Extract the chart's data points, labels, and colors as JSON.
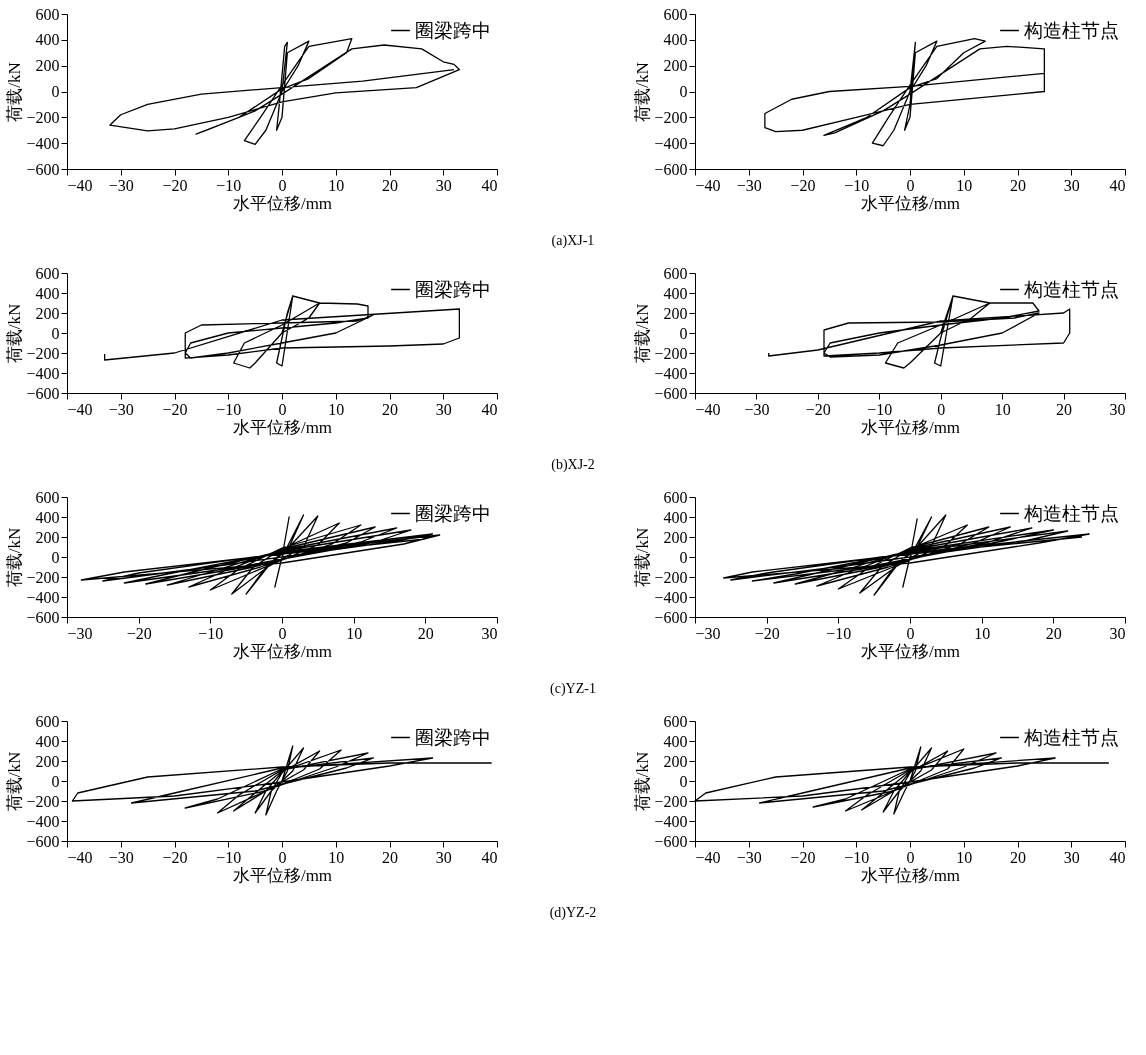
{
  "chart_data": [
    {
      "type": "line",
      "xlabel": "水平位移/mm",
      "ylabel": "荷载/kN",
      "xlim": [
        -40,
        40
      ],
      "xticks": [
        -40,
        -30,
        -20,
        -10,
        0,
        10,
        20,
        30,
        40
      ],
      "ylim": [
        -600,
        600
      ],
      "yticks": [
        -600,
        -400,
        -200,
        0,
        200,
        400,
        600
      ],
      "legend": "top right",
      "annotations": [
        "(a)XJ-1"
      ],
      "series": [
        {
          "name": "圈梁跨中",
          "color": "#000000",
          "x": [
            0,
            1,
            0.5,
            -0.5,
            -1,
            0,
            1,
            5,
            3,
            0,
            -3,
            -5,
            -7,
            -4,
            0,
            5,
            13,
            12,
            5,
            0,
            -8,
            -16,
            -14,
            -5,
            0,
            13,
            19,
            26,
            30,
            32,
            33,
            25,
            10,
            0,
            -10,
            -20,
            -25,
            -32,
            -30,
            -25,
            -15,
            0,
            15,
            32
          ],
          "values": [
            0,
            380,
            350,
            -100,
            -300,
            -200,
            300,
            390,
            200,
            0,
            -300,
            -410,
            -380,
            -200,
            50,
            350,
            410,
            300,
            100,
            20,
            -200,
            -330,
            -300,
            -150,
            -20,
            330,
            360,
            330,
            230,
            210,
            170,
            30,
            -10,
            -80,
            -200,
            -290,
            -305,
            -260,
            -180,
            -100,
            -20,
            30,
            80,
            170
          ]
        }
      ]
    },
    {
      "type": "line",
      "xlabel": "水平位移/mm",
      "ylabel": "荷载/kN",
      "xlim": [
        -40,
        40
      ],
      "xticks": [
        -40,
        -30,
        -20,
        -10,
        0,
        10,
        20,
        30,
        40
      ],
      "ylim": [
        -600,
        600
      ],
      "yticks": [
        -600,
        -400,
        -200,
        0,
        200,
        400,
        600
      ],
      "legend": "top right",
      "series": [
        {
          "name": "构造柱节点",
          "color": "#000000",
          "x": [
            0,
            1,
            0,
            -1,
            0,
            1,
            5,
            3,
            0,
            -3,
            -5,
            -7,
            -4,
            0,
            5,
            12,
            14,
            10,
            5,
            0,
            -8,
            -16,
            -14,
            -5,
            0,
            13,
            18,
            25,
            25,
            20,
            0,
            -10,
            -20,
            -25,
            -27,
            -27,
            -22,
            -15,
            0,
            25,
            25
          ],
          "values": [
            0,
            380,
            -100,
            -300,
            -200,
            300,
            390,
            200,
            0,
            -300,
            -420,
            -400,
            -200,
            50,
            350,
            410,
            390,
            300,
            100,
            30,
            -200,
            -340,
            -320,
            -150,
            -20,
            330,
            350,
            330,
            0,
            -20,
            -100,
            -200,
            -300,
            -310,
            -280,
            -170,
            -60,
            0,
            40,
            140,
            170
          ]
        }
      ]
    },
    {
      "type": "line",
      "xlabel": "水平位移/mm",
      "ylabel": "荷载/kN",
      "xlim": [
        -40,
        40
      ],
      "xticks": [
        -40,
        -30,
        -20,
        -10,
        0,
        10,
        20,
        30,
        40
      ],
      "ylim": [
        -600,
        600
      ],
      "yticks": [
        -600,
        -400,
        -200,
        0,
        200,
        400,
        600
      ],
      "legend": "top right",
      "annotations": [
        "(b)XJ-2"
      ],
      "series": [
        {
          "name": "圈梁跨中",
          "color": "#000000",
          "x": [
            0,
            2,
            1,
            0,
            -1,
            0,
            2,
            7,
            5,
            0,
            -5,
            -6,
            -9,
            -7,
            0,
            7,
            14,
            16,
            16,
            10,
            0,
            -10,
            -17,
            -18,
            -17,
            -10,
            0,
            10,
            17,
            14,
            0,
            -15,
            -18,
            -18,
            -10,
            0,
            20,
            30,
            33,
            33,
            33,
            0,
            -20,
            -33,
            -33
          ],
          "values": [
            0,
            370,
            200,
            -50,
            -300,
            -330,
            370,
            300,
            150,
            0,
            -300,
            -350,
            -300,
            -100,
            80,
            300,
            290,
            270,
            150,
            100,
            50,
            0,
            -100,
            -200,
            -250,
            -200,
            -100,
            0,
            180,
            120,
            100,
            80,
            0,
            -250,
            -220,
            -150,
            -130,
            -110,
            -50,
            150,
            240,
            130,
            -200,
            -270,
            -210
          ]
        }
      ]
    },
    {
      "type": "line",
      "xlabel": "水平位移/mm",
      "ylabel": "荷载/kN",
      "xlim": [
        -40,
        30
      ],
      "xticks": [
        -40,
        -30,
        -20,
        -10,
        0,
        10,
        20,
        30
      ],
      "ylim": [
        -600,
        600
      ],
      "yticks": [
        -600,
        -400,
        -200,
        0,
        200,
        400,
        600
      ],
      "legend": "top right",
      "series": [
        {
          "name": "构造柱节点",
          "color": "#000000",
          "x": [
            0,
            2,
            0,
            -1,
            0,
            2,
            8,
            5,
            0,
            -5,
            -6,
            -9,
            -7,
            0,
            8,
            15,
            16,
            10,
            0,
            -10,
            -18,
            -19,
            -18,
            -10,
            0,
            10,
            16,
            12,
            0,
            -15,
            -19,
            -19,
            -10,
            0,
            20,
            21,
            21,
            20,
            0,
            -20,
            -28,
            -28
          ],
          "values": [
            0,
            370,
            -50,
            -300,
            -330,
            370,
            300,
            150,
            0,
            -300,
            -350,
            -300,
            -100,
            80,
            300,
            300,
            220,
            150,
            80,
            0,
            -100,
            -200,
            -240,
            -220,
            -120,
            0,
            200,
            150,
            110,
            100,
            30,
            -230,
            -200,
            -150,
            -100,
            0,
            240,
            200,
            120,
            -170,
            -230,
            -200
          ]
        }
      ]
    },
    {
      "type": "line",
      "xlabel": "水平位移/mm",
      "ylabel": "荷载/kN",
      "xlim": [
        -30,
        30
      ],
      "xticks": [
        -30,
        -20,
        -10,
        0,
        10,
        20,
        30
      ],
      "ylim": [
        -600,
        600
      ],
      "yticks": [
        -600,
        -400,
        -200,
        0,
        200,
        400,
        600
      ],
      "legend": "top right",
      "annotations": [
        "(c)YZ-1"
      ],
      "series": [
        {
          "name": "圈梁跨中",
          "color": "#000000",
          "x": [
            0,
            1,
            0,
            -1,
            0,
            3,
            1,
            -2,
            -5,
            -2,
            1,
            5,
            3,
            -2,
            -7,
            -4,
            0,
            8,
            5,
            -2,
            -10,
            -6,
            0,
            11,
            7,
            -3,
            -13,
            -8,
            0,
            13,
            9,
            -4,
            -16,
            -10,
            0,
            16,
            11,
            -5,
            -19,
            -13,
            0,
            18,
            13,
            -6,
            -22,
            -16,
            0,
            21,
            16,
            -8,
            -25,
            -20,
            0,
            22,
            17,
            0,
            -28,
            -22,
            0,
            20
          ],
          "values": [
            0,
            400,
            0,
            -300,
            0,
            420,
            100,
            -100,
            -370,
            -80,
            100,
            410,
            100,
            -100,
            -370,
            -100,
            80,
            340,
            120,
            -90,
            -330,
            -120,
            90,
            320,
            130,
            -100,
            -300,
            -140,
            80,
            300,
            140,
            -100,
            -280,
            -150,
            70,
            290,
            150,
            -100,
            -270,
            -160,
            60,
            270,
            150,
            -100,
            -260,
            -170,
            50,
            230,
            160,
            -80,
            -240,
            -160,
            40,
            220,
            130,
            -60,
            -230,
            -150,
            30,
            180
          ]
        }
      ]
    },
    {
      "type": "line",
      "xlabel": "水平位移/mm",
      "ylabel": "荷载/kN",
      "xlim": [
        -30,
        30
      ],
      "xticks": [
        -30,
        -20,
        -10,
        0,
        10,
        20,
        30
      ],
      "ylim": [
        -600,
        600
      ],
      "yticks": [
        -600,
        -400,
        -200,
        0,
        200,
        400,
        600
      ],
      "legend": "top right",
      "series": [
        {
          "name": "构造柱节点",
          "color": "#000000",
          "x": [
            0,
            1,
            0,
            -1,
            0,
            3,
            1,
            -2,
            -5,
            -2,
            1,
            5,
            3,
            -2,
            -7,
            -4,
            0,
            8,
            5,
            -2,
            -10,
            -6,
            0,
            11,
            7,
            -3,
            -13,
            -8,
            0,
            14,
            9,
            -4,
            -16,
            -10,
            0,
            17,
            11,
            -5,
            -19,
            -13,
            0,
            20,
            13,
            -6,
            -22,
            -16,
            0,
            22,
            16,
            -8,
            -25,
            -20,
            0,
            25,
            18,
            0,
            -26,
            -22,
            0,
            24
          ],
          "values": [
            0,
            380,
            0,
            -300,
            0,
            400,
            100,
            -100,
            -380,
            -80,
            100,
            420,
            110,
            -100,
            -360,
            -100,
            80,
            320,
            120,
            -90,
            -320,
            -120,
            90,
            300,
            130,
            -100,
            -290,
            -140,
            80,
            300,
            140,
            -100,
            -270,
            -150,
            70,
            290,
            150,
            -100,
            -260,
            -160,
            60,
            270,
            160,
            -100,
            -240,
            -170,
            50,
            260,
            160,
            -80,
            -230,
            -160,
            40,
            230,
            140,
            -60,
            -210,
            -150,
            30,
            200
          ]
        }
      ]
    },
    {
      "type": "line",
      "xlabel": "水平位移/mm",
      "ylabel": "荷载/kN",
      "xlim": [
        -40,
        40
      ],
      "xticks": [
        -40,
        -30,
        -20,
        -10,
        0,
        10,
        20,
        30,
        40
      ],
      "ylim": [
        -600,
        600
      ],
      "yticks": [
        -600,
        -400,
        -200,
        0,
        200,
        400,
        600
      ],
      "legend": "top right",
      "annotations": [
        "(d)YZ-2"
      ],
      "series": [
        {
          "name": "圈梁跨中",
          "color": "#000000",
          "x": [
            0,
            2,
            1,
            -1,
            -3,
            -2,
            0,
            4,
            2,
            -2,
            -5,
            -3,
            0,
            7,
            4,
            -3,
            -9,
            -5,
            0,
            11,
            7,
            -3,
            -12,
            -8,
            0,
            16,
            10,
            -4,
            -18,
            -12,
            0,
            17,
            12,
            -5,
            -28,
            -20,
            0,
            28,
            20,
            0,
            -20,
            -39,
            -38,
            -25,
            0,
            20,
            39
          ],
          "values": [
            0,
            350,
            100,
            -100,
            -340,
            -100,
            80,
            330,
            100,
            -100,
            -320,
            -100,
            90,
            300,
            110,
            -100,
            -300,
            -120,
            100,
            310,
            120,
            -100,
            -320,
            -140,
            110,
            280,
            140,
            -110,
            -270,
            -180,
            120,
            230,
            130,
            -100,
            -220,
            -120,
            130,
            230,
            150,
            -10,
            -150,
            -200,
            -120,
            40,
            140,
            180,
            180
          ]
        }
      ]
    },
    {
      "type": "line",
      "xlabel": "水平位移/mm",
      "ylabel": "荷载/kN",
      "xlim": [
        -40,
        40
      ],
      "xticks": [
        -40,
        -30,
        -20,
        -10,
        0,
        10,
        20,
        30,
        40
      ],
      "ylim": [
        -600,
        600
      ],
      "yticks": [
        -600,
        -400,
        -200,
        0,
        200,
        400,
        600
      ],
      "legend": "top right",
      "series": [
        {
          "name": "构造柱节点",
          "color": "#000000",
          "x": [
            0,
            2,
            1,
            -1,
            -3,
            -2,
            0,
            4,
            2,
            -2,
            -5,
            -3,
            0,
            7,
            4,
            -3,
            -9,
            -5,
            0,
            10,
            7,
            -3,
            -12,
            -8,
            0,
            16,
            10,
            -4,
            -18,
            -12,
            0,
            17,
            12,
            -5,
            -28,
            -20,
            0,
            27,
            20,
            0,
            -20,
            -40,
            -38,
            -25,
            0,
            20,
            37
          ],
          "values": [
            0,
            340,
            100,
            -100,
            -330,
            -100,
            80,
            330,
            100,
            -100,
            -310,
            -100,
            90,
            300,
            110,
            -100,
            -290,
            -120,
            100,
            320,
            120,
            -100,
            -300,
            -140,
            110,
            280,
            140,
            -110,
            -260,
            -180,
            120,
            230,
            130,
            -100,
            -220,
            -120,
            130,
            230,
            150,
            -10,
            -150,
            -200,
            -120,
            40,
            140,
            180,
            180
          ]
        }
      ]
    }
  ]
}
